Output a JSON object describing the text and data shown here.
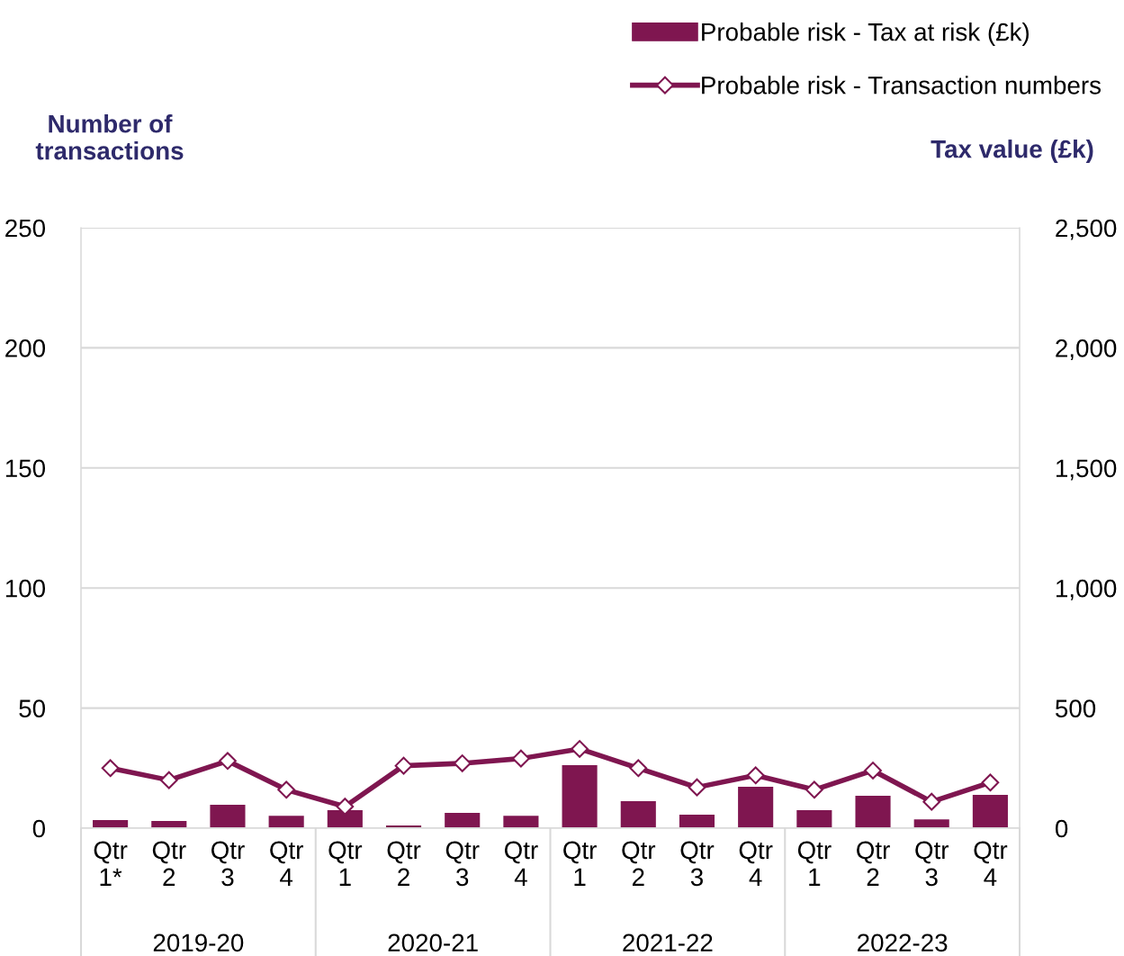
{
  "chart_data": {
    "type": "bar",
    "categories": [
      "Qtr\n1*",
      "Qtr\n2",
      "Qtr\n3",
      "Qtr\n4",
      "Qtr\n1",
      "Qtr\n2",
      "Qtr\n3",
      "Qtr\n4",
      "Qtr\n1",
      "Qtr\n2",
      "Qtr\n3",
      "Qtr\n4",
      "Qtr\n1",
      "Qtr\n2",
      "Qtr\n3",
      "Qtr\n4"
    ],
    "series": [
      {
        "name": "Probable risk - Tax at risk (£k)",
        "axis": "y2",
        "color": "#7f1650",
        "values": [
          34,
          30,
          97,
          52,
          75,
          11,
          64,
          52,
          262,
          112,
          56,
          172,
          75,
          135,
          37,
          139
        ]
      },
      {
        "name": "Probable risk - Transaction numbers",
        "type": "line",
        "axis": "y",
        "color": "#7f1650",
        "marker": "diamond",
        "values": [
          25,
          20,
          28,
          16,
          9,
          26,
          27,
          29,
          33,
          25,
          17,
          22,
          16,
          24,
          11,
          19
        ]
      }
    ],
    "ylabel": "Number of\ntransactions",
    "y2label": "Tax value (£k)",
    "ylim": [
      0,
      250
    ],
    "yticks": [
      0,
      50,
      100,
      150,
      200,
      250
    ],
    "y2lim": [
      0,
      2500
    ],
    "y2ticks": [
      {
        "value": 0,
        "label": "0"
      },
      {
        "value": 500,
        "label": "500"
      },
      {
        "value": 1000,
        "label": "1,000"
      },
      {
        "value": 1500,
        "label": "1,500"
      },
      {
        "value": 2000,
        "label": "2,000"
      },
      {
        "value": 2500,
        "label": "2,500"
      }
    ],
    "annotations": [
      "2019-20",
      "2020-21",
      "2021-22",
      "2022-23"
    ],
    "grid": "y",
    "legend": "top right"
  }
}
